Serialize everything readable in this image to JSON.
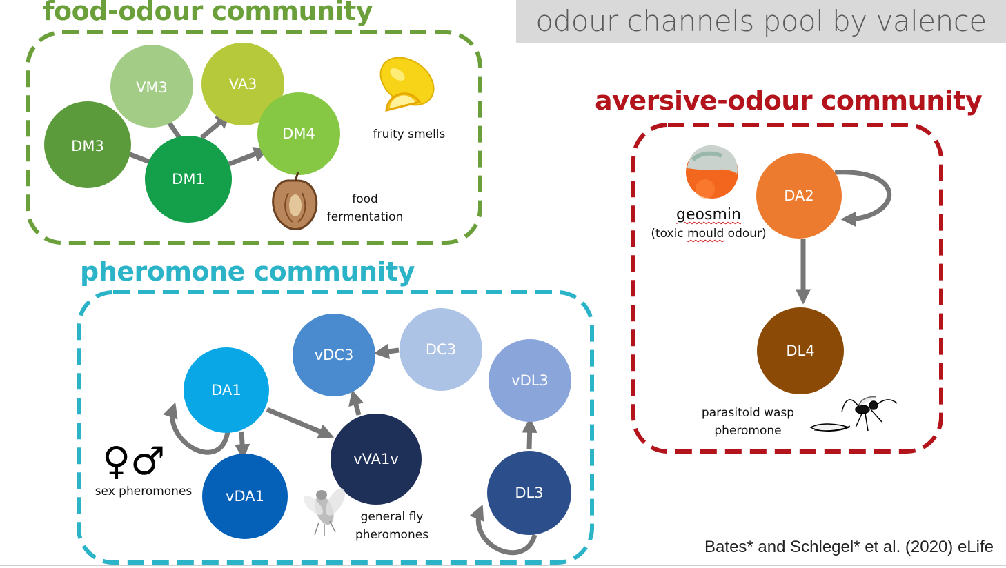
{
  "header": {
    "title": "odour channels pool by valence"
  },
  "communities": {
    "food": {
      "title": "food-odour community",
      "color": "#6a9f3a"
    },
    "pheromone": {
      "title": "pheromone community",
      "color": "#2bb3c8"
    },
    "aversive": {
      "title": "aversive-odour community",
      "color": "#b3131b"
    }
  },
  "nodes": {
    "DM3": {
      "label": "DM3",
      "color": "#5c9b3c"
    },
    "VM3": {
      "label": "VM3",
      "color": "#a3cd86"
    },
    "VA3": {
      "label": "VA3",
      "color": "#b5c93a"
    },
    "DM4": {
      "label": "DM4",
      "color": "#86c843"
    },
    "DM1": {
      "label": "DM1",
      "color": "#14a04a"
    },
    "DA2": {
      "label": "DA2",
      "color": "#ed7b2f"
    },
    "DL4": {
      "label": "DL4",
      "color": "#8b4a06"
    },
    "DA1": {
      "label": "DA1",
      "color": "#0aa7e6"
    },
    "vDA1": {
      "label": "vDA1",
      "color": "#0561b8"
    },
    "vDC3": {
      "label": "vDC3",
      "color": "#4a8bd0"
    },
    "DC3": {
      "label": "DC3",
      "color": "#adc3e5"
    },
    "vVA1v": {
      "label": "vVA1v",
      "color": "#1e3058"
    },
    "vDL3": {
      "label": "vDL3",
      "color": "#8aa5da"
    },
    "DL3": {
      "label": "DL3",
      "color": "#2c4f8c"
    }
  },
  "captions": {
    "fruity": "fruity smells",
    "food_fermentation_1": "food",
    "food_fermentation_2": "fermentation",
    "geosmin_title": "geosmin",
    "geosmin_sub_1": "(toxic ",
    "geosmin_sub_mould": "mould",
    "geosmin_sub_2": " odour)",
    "wasp_1": "parasitoid wasp",
    "wasp_2": "pheromone",
    "sex_symbols": "♀♂",
    "sex": "sex pheromones",
    "fly_1": "general fly",
    "fly_2": "pheromones"
  },
  "citation": "Bates* and Schlegel* et al.  (2020) eLife",
  "icons": [
    "lemon-icon",
    "dried-apple-icon",
    "mouldy-orange-icon",
    "wasp-icon",
    "fly-icon"
  ]
}
